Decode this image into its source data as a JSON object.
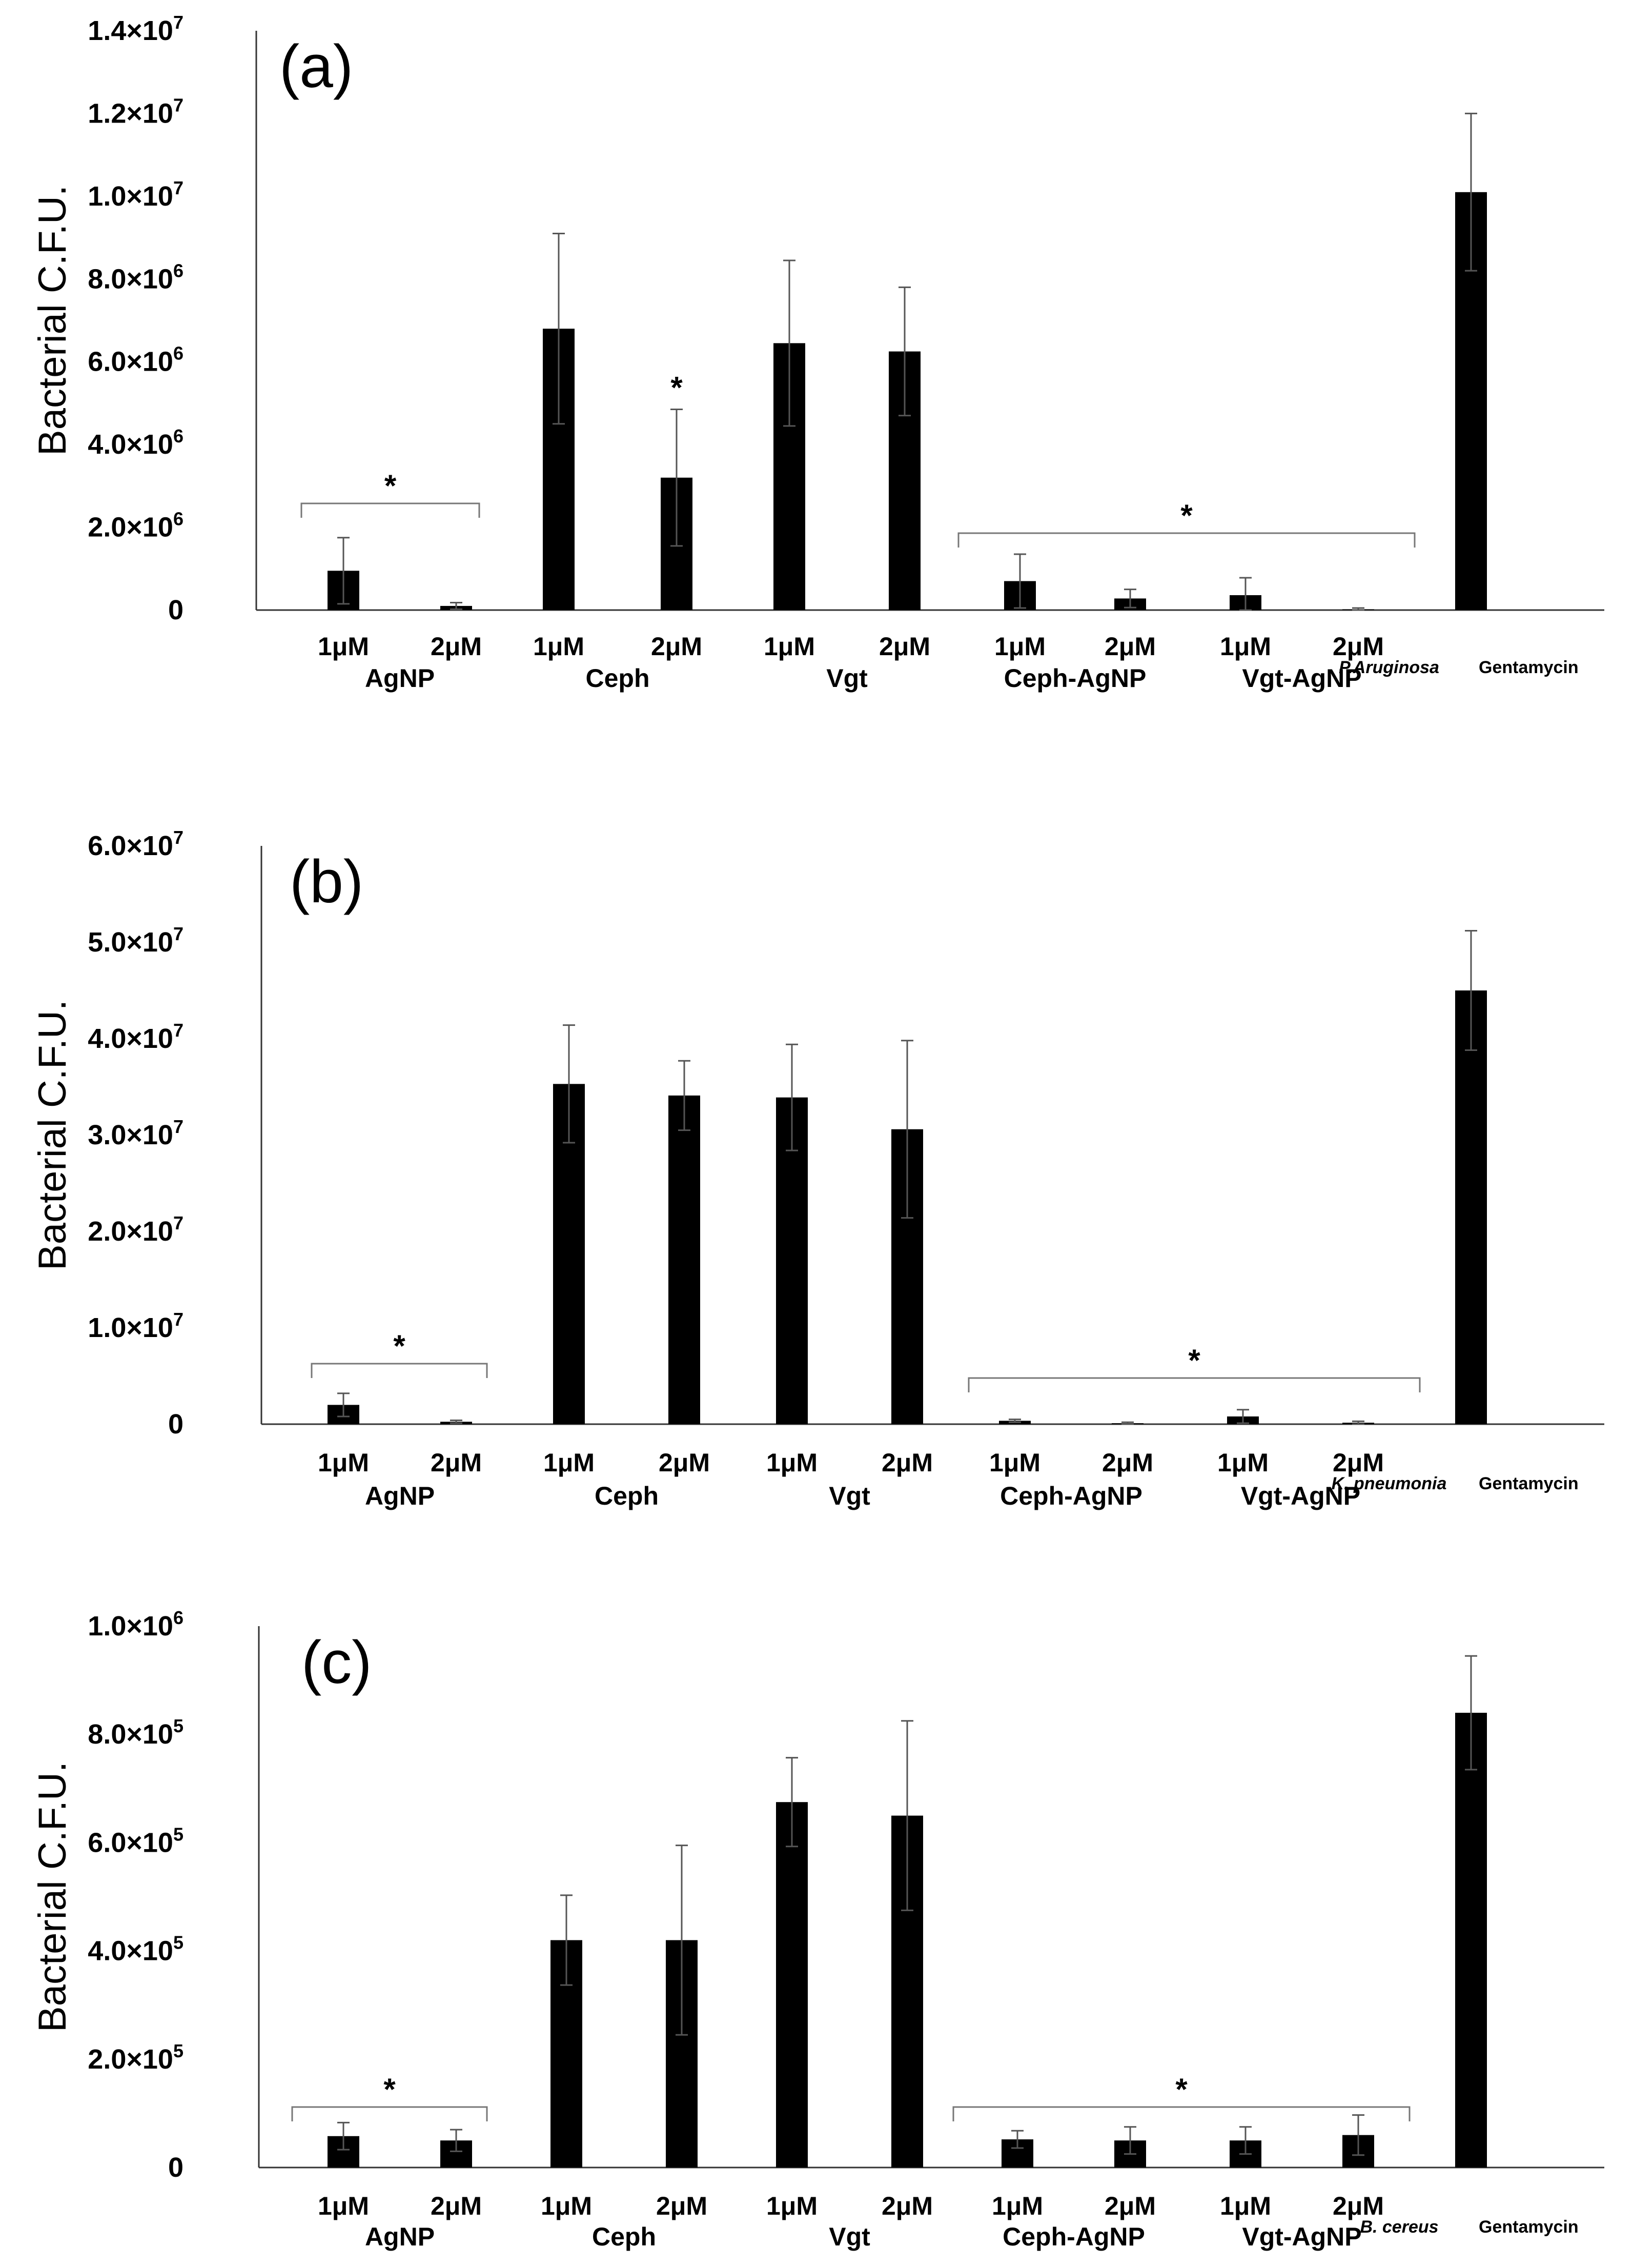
{
  "figure": {
    "ylabel": "Bacterial C.F.U.",
    "group_labels": [
      "AgNP",
      "Ceph",
      "Vgt",
      "Ceph-AgNP",
      "Vgt-AgNP"
    ],
    "dose_labels": [
      "1μM",
      "2μM"
    ],
    "control_label": "Gentamycin",
    "significance_marker": "*"
  },
  "chart_data": [
    {
      "type": "bar",
      "panel_label": "(a)",
      "organism": "P.Aruginosa",
      "ylabel": "Bacterial C.F.U.",
      "ylim": [
        0,
        14000000
      ],
      "yticks": [
        {
          "mantissa": "0",
          "exp": ""
        },
        {
          "mantissa": "2.0×10",
          "exp": "6"
        },
        {
          "mantissa": "4.0×10",
          "exp": "6"
        },
        {
          "mantissa": "6.0×10",
          "exp": "6"
        },
        {
          "mantissa": "8.0×10",
          "exp": "6"
        },
        {
          "mantissa": "1.0×10",
          "exp": "7"
        },
        {
          "mantissa": "1.2×10",
          "exp": "7"
        },
        {
          "mantissa": "1.4×10",
          "exp": "7"
        }
      ],
      "categories": [
        "AgNP 1μM",
        "AgNP 2μM",
        "Ceph 1μM",
        "Ceph 2μM",
        "Vgt 1μM",
        "Vgt 2μM",
        "Ceph-AgNP 1μM",
        "Ceph-AgNP 2μM",
        "Vgt-AgNP 1μM",
        "Vgt-AgNP 2μM",
        "Gentamycin"
      ],
      "values": [
        950000,
        100000,
        6800000,
        3200000,
        6450000,
        6250000,
        700000,
        280000,
        360000,
        20000,
        10100000
      ],
      "errors": [
        800000,
        80000,
        2300000,
        1650000,
        2000000,
        1550000,
        650000,
        220000,
        420000,
        30000,
        1900000
      ],
      "significant_brackets": [
        {
          "from": 0,
          "to": 1,
          "label": "*"
        },
        {
          "from": 6,
          "to": 9,
          "label": "*"
        }
      ],
      "significant_bars": [
        3
      ]
    },
    {
      "type": "bar",
      "panel_label": "(b)",
      "organism": "K. pneumonia",
      "ylabel": "Bacterial C.F.U.",
      "ylim": [
        0,
        60000000
      ],
      "yticks": [
        {
          "mantissa": "0",
          "exp": ""
        },
        {
          "mantissa": "1.0×10",
          "exp": "7"
        },
        {
          "mantissa": "2.0×10",
          "exp": "7"
        },
        {
          "mantissa": "3.0×10",
          "exp": "7"
        },
        {
          "mantissa": "4.0×10",
          "exp": "7"
        },
        {
          "mantissa": "5.0×10",
          "exp": "7"
        },
        {
          "mantissa": "6.0×10",
          "exp": "7"
        }
      ],
      "categories": [
        "AgNP 1μM",
        "AgNP 2μM",
        "Ceph 1μM",
        "Ceph 2μM",
        "Vgt 1μM",
        "Vgt 2μM",
        "Ceph-AgNP 1μM",
        "Ceph-AgNP 2μM",
        "Vgt-AgNP 1μM",
        "Vgt-AgNP 2μM",
        "Gentamycin"
      ],
      "values": [
        2000000,
        250000,
        35300000,
        34100000,
        33900000,
        30600000,
        350000,
        100000,
        800000,
        150000,
        45000000
      ],
      "errors": [
        1200000,
        150000,
        6100000,
        3600000,
        5500000,
        9200000,
        150000,
        100000,
        700000,
        150000,
        6200000
      ],
      "significant_brackets": [
        {
          "from": 0,
          "to": 1,
          "label": "*"
        },
        {
          "from": 6,
          "to": 9,
          "label": "*"
        }
      ],
      "significant_bars": []
    },
    {
      "type": "bar",
      "panel_label": "(c)",
      "organism": "B. cereus",
      "ylabel": "Bacterial C.F.U.",
      "ylim": [
        0,
        1000000
      ],
      "yticks": [
        {
          "mantissa": "0",
          "exp": ""
        },
        {
          "mantissa": "2.0×10",
          "exp": "5"
        },
        {
          "mantissa": "4.0×10",
          "exp": "5"
        },
        {
          "mantissa": "6.0×10",
          "exp": "5"
        },
        {
          "mantissa": "8.0×10",
          "exp": "5"
        },
        {
          "mantissa": "1.0×10",
          "exp": "6"
        }
      ],
      "categories": [
        "AgNP 1μM",
        "AgNP 2μM",
        "Ceph 1μM",
        "Ceph 2μM",
        "Vgt 1μM",
        "Vgt 2μM",
        "Ceph-AgNP 1μM",
        "Ceph-AgNP 2μM",
        "Vgt-AgNP 1μM",
        "Vgt-AgNP 2μM",
        "Gentamycin"
      ],
      "values": [
        58000,
        50000,
        420000,
        420000,
        675000,
        650000,
        52000,
        50000,
        50000,
        60000,
        840000
      ],
      "errors": [
        25000,
        20000,
        83000,
        175000,
        82000,
        175000,
        16000,
        25000,
        25000,
        37000,
        105000
      ],
      "significant_brackets": [
        {
          "from": 0,
          "to": 1,
          "label": "*"
        },
        {
          "from": 6,
          "to": 9,
          "label": "*"
        }
      ],
      "significant_bars": []
    }
  ]
}
